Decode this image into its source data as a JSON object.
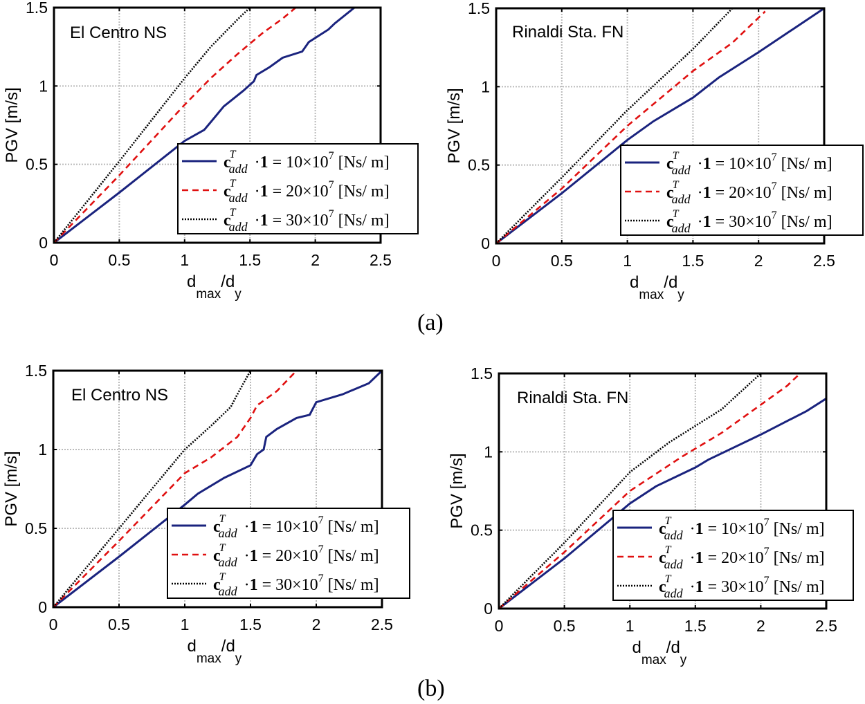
{
  "captions": [
    "(a)",
    "(b)"
  ],
  "colors": {
    "blue": "#1a237e",
    "red": "#e01010",
    "black": "#000000",
    "grid": "#bbbbbb"
  },
  "chart_data": [
    {
      "type": "line",
      "panel": "(a)",
      "title": "El Centro NS",
      "xlabel": "d_max/d_y",
      "xlabel_main": "d",
      "xlabel_sub1": "max",
      "xlabel_sep": "/",
      "xlabel_sub2": "y",
      "ylabel": "PGV [m/s]",
      "xlim": [
        0,
        2.5
      ],
      "ylim": [
        0,
        1.5
      ],
      "xticks": [
        "0",
        "0.5",
        "1",
        "1.5",
        "2",
        "2.5"
      ],
      "yticks": [
        "0",
        "0.5",
        "1",
        "1.5"
      ],
      "grid": true,
      "legend_position": "bottom-right",
      "series": [
        {
          "name": "c^T_add ·1 = 10×10^7 [Ns/ m]",
          "coef": "10",
          "style": "solid",
          "color": "#1a237e",
          "x": [
            0,
            0.5,
            1,
            1.15,
            1.2,
            1.3,
            1.45,
            1.53,
            1.55,
            1.65,
            1.75,
            1.9,
            1.95,
            2.1,
            2.15,
            2.3
          ],
          "y": [
            0,
            0.32,
            0.65,
            0.72,
            0.77,
            0.87,
            0.97,
            1.03,
            1.07,
            1.12,
            1.18,
            1.22,
            1.28,
            1.36,
            1.4,
            1.5
          ]
        },
        {
          "name": "c^T_add ·1 = 20×10^7 [Ns/ m]",
          "coef": "20",
          "style": "dashed",
          "color": "#e01010",
          "x": [
            0,
            0.5,
            1,
            1.2,
            1.4,
            1.5,
            1.6,
            1.75,
            1.85
          ],
          "y": [
            0,
            0.43,
            0.88,
            1.05,
            1.2,
            1.27,
            1.34,
            1.43,
            1.5
          ]
        },
        {
          "name": "c^T_add ·1 = 30×10^7 [Ns/ m]",
          "coef": "30",
          "style": "dotted",
          "color": "#000000",
          "x": [
            0,
            0.5,
            1,
            1.2,
            1.4,
            1.5
          ],
          "y": [
            0,
            0.52,
            1.05,
            1.25,
            1.42,
            1.5
          ]
        }
      ]
    },
    {
      "type": "line",
      "panel": "(a)",
      "title": "Rinaldi Sta. FN",
      "xlabel": "d_max/d_y",
      "xlabel_main": "d",
      "xlabel_sub1": "max",
      "xlabel_sep": "/",
      "xlabel_sub2": "y",
      "ylabel": "PGV [m/s]",
      "xlim": [
        0,
        2.5
      ],
      "ylim": [
        0,
        1.5
      ],
      "xticks": [
        "0",
        "0.5",
        "1",
        "1.5",
        "2",
        "2.5"
      ],
      "yticks": [
        "0",
        "0.5",
        "1",
        "1.5"
      ],
      "grid": true,
      "legend_position": "bottom-right",
      "series": [
        {
          "name": "c^T_add ·1 = 10×10^7 [Ns/ m]",
          "coef": "10",
          "style": "solid",
          "color": "#1a237e",
          "x": [
            0,
            0.5,
            1,
            1.2,
            1.5,
            1.7,
            2,
            2.5
          ],
          "y": [
            0,
            0.32,
            0.66,
            0.78,
            0.93,
            1.06,
            1.22,
            1.5
          ]
        },
        {
          "name": "c^T_add ·1 = 20×10^7 [Ns/ m]",
          "coef": "20",
          "style": "dashed",
          "color": "#e01010",
          "x": [
            0,
            0.5,
            1,
            1.5,
            1.8,
            2.05
          ],
          "y": [
            0,
            0.35,
            0.75,
            1.1,
            1.28,
            1.48
          ]
        },
        {
          "name": "c^T_add ·1 = 30×10^7 [Ns/ m]",
          "coef": "30",
          "style": "dotted",
          "color": "#000000",
          "x": [
            0,
            0.5,
            1,
            1.5,
            1.8
          ],
          "y": [
            0,
            0.42,
            0.85,
            1.24,
            1.5
          ]
        }
      ]
    },
    {
      "type": "line",
      "panel": "(b)",
      "title": "El Centro NS",
      "xlabel": "d_max/d_y",
      "xlabel_main": "d",
      "xlabel_sub1": "max",
      "xlabel_sep": "/",
      "xlabel_sub2": "y",
      "ylabel": "PGV [m/s]",
      "xlim": [
        0,
        2.5
      ],
      "ylim": [
        0,
        1.5
      ],
      "xticks": [
        "0",
        "0.5",
        "1",
        "1.5",
        "2",
        "2.5"
      ],
      "yticks": [
        "0",
        "0.5",
        "1",
        "1.5"
      ],
      "grid": true,
      "legend_position": "bottom-right",
      "series": [
        {
          "name": "c^T_add ·1 = 10×10^7 [Ns/ m]",
          "coef": "10",
          "style": "solid",
          "color": "#1a237e",
          "x": [
            0,
            0.5,
            1,
            1.1,
            1.3,
            1.5,
            1.55,
            1.6,
            1.62,
            1.7,
            1.85,
            1.95,
            2,
            2.2,
            2.4,
            2.5
          ],
          "y": [
            0,
            0.32,
            0.65,
            0.72,
            0.82,
            0.9,
            0.97,
            1.0,
            1.08,
            1.13,
            1.2,
            1.22,
            1.3,
            1.35,
            1.42,
            1.5
          ]
        },
        {
          "name": "c^T_add ·1 = 20×10^7 [Ns/ m]",
          "coef": "20",
          "style": "dashed",
          "color": "#e01010",
          "x": [
            0,
            0.5,
            1,
            1.2,
            1.4,
            1.5,
            1.55,
            1.7,
            1.85
          ],
          "y": [
            0,
            0.42,
            0.85,
            0.95,
            1.08,
            1.2,
            1.28,
            1.37,
            1.5
          ]
        },
        {
          "name": "c^T_add ·1 = 30×10^7 [Ns/ m]",
          "coef": "30",
          "style": "dotted",
          "color": "#000000",
          "x": [
            0,
            0.5,
            1,
            1.2,
            1.35,
            1.4,
            1.5
          ],
          "y": [
            0,
            0.5,
            1.0,
            1.15,
            1.27,
            1.35,
            1.5
          ]
        }
      ]
    },
    {
      "type": "line",
      "panel": "(b)",
      "title": "Rinaldi Sta. FN",
      "xlabel": "d_max/d_y",
      "xlabel_main": "d",
      "xlabel_sub1": "max",
      "xlabel_sep": "/",
      "xlabel_sub2": "y",
      "ylabel": "PGV [m/s]",
      "xlim": [
        0,
        2.5
      ],
      "ylim": [
        0,
        1.5
      ],
      "xticks": [
        "0",
        "0.5",
        "1",
        "1.5",
        "2",
        "2.5"
      ],
      "yticks": [
        "0",
        "0.5",
        "1",
        "1.5"
      ],
      "grid": true,
      "legend_position": "bottom-right",
      "series": [
        {
          "name": "c^T_add ·1 = 10×10^7 [Ns/ m]",
          "coef": "10",
          "style": "solid",
          "color": "#1a237e",
          "x": [
            0,
            0.5,
            1,
            1.2,
            1.5,
            1.6,
            2,
            2.35,
            2.5
          ],
          "y": [
            0,
            0.32,
            0.67,
            0.78,
            0.9,
            0.95,
            1.11,
            1.26,
            1.34
          ]
        },
        {
          "name": "c^T_add ·1 = 20×10^7 [Ns/ m]",
          "coef": "20",
          "style": "dashed",
          "color": "#e01010",
          "x": [
            0,
            0.5,
            1,
            1.4,
            1.7,
            2,
            2.2,
            2.3
          ],
          "y": [
            0,
            0.36,
            0.75,
            0.97,
            1.12,
            1.3,
            1.42,
            1.5
          ]
        },
        {
          "name": "c^T_add ·1 = 30×10^7 [Ns/ m]",
          "coef": "30",
          "style": "dotted",
          "color": "#000000",
          "x": [
            0,
            0.5,
            1,
            1.3,
            1.7,
            2
          ],
          "y": [
            0,
            0.42,
            0.87,
            1.06,
            1.27,
            1.5
          ]
        }
      ]
    }
  ],
  "legend_parts": {
    "sym": "c",
    "sup": "T",
    "sub": "add",
    "dot": "·",
    "one": "1",
    "eq": "=",
    "times": "×10",
    "exp": "7",
    "unit": "[Ns/ m]"
  }
}
